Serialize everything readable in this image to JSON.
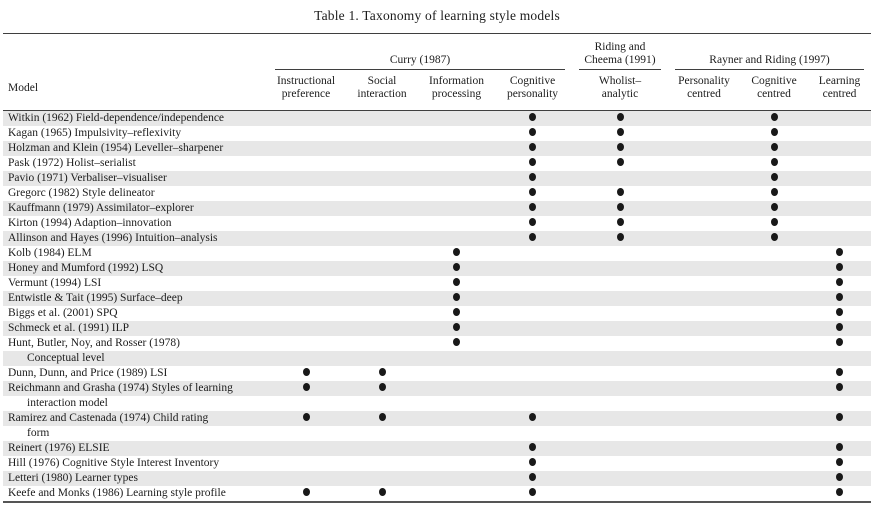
{
  "title": "Table 1. Taxonomy of learning style models",
  "colors": {
    "stripe": "#e7e7e7",
    "text": "#1c1c1c",
    "rule": "#3f3f3f",
    "rule_heavy": "#555555"
  },
  "table": {
    "model_header": "Model",
    "groups": [
      {
        "label": "Curry (1987)",
        "span": 4
      },
      {
        "label": "Riding and Cheema (1991)",
        "span": 1
      },
      {
        "label": "Rayner and Riding (1997)",
        "span": 3
      }
    ],
    "columns": [
      "Instructional preference",
      "Social interaction",
      "Information processing",
      "Cognitive personality",
      "Wholist–analytic",
      "Personality centred",
      "Cognitive centred",
      "Learning centred"
    ],
    "dot_legend": "filled dot = model classified under this family",
    "rows": [
      {
        "model": "Witkin (1962) Field-dependence/independence",
        "dots": [
          0,
          0,
          0,
          1,
          1,
          0,
          1,
          0
        ]
      },
      {
        "model": "Kagan (1965) Impulsivity–reflexivity",
        "dots": [
          0,
          0,
          0,
          1,
          1,
          0,
          1,
          0
        ]
      },
      {
        "model": "Holzman and Klein (1954) Leveller–sharpener",
        "dots": [
          0,
          0,
          0,
          1,
          1,
          0,
          1,
          0
        ]
      },
      {
        "model": "Pask (1972) Holist–serialist",
        "dots": [
          0,
          0,
          0,
          1,
          1,
          0,
          1,
          0
        ]
      },
      {
        "model": "Pavio (1971) Verbaliser–visualiser",
        "dots": [
          0,
          0,
          0,
          1,
          0,
          0,
          1,
          0
        ]
      },
      {
        "model": "Gregorc (1982) Style delineator",
        "dots": [
          0,
          0,
          0,
          1,
          1,
          0,
          1,
          0
        ]
      },
      {
        "model": "Kauffmann (1979) Assimilator–explorer",
        "dots": [
          0,
          0,
          0,
          1,
          1,
          0,
          1,
          0
        ]
      },
      {
        "model": "Kirton (1994) Adaption–innovation",
        "dots": [
          0,
          0,
          0,
          1,
          1,
          0,
          1,
          0
        ]
      },
      {
        "model": "Allinson and Hayes (1996) Intuition–analysis",
        "dots": [
          0,
          0,
          0,
          1,
          1,
          0,
          1,
          0
        ]
      },
      {
        "model": "Kolb (1984) ELM",
        "dots": [
          0,
          0,
          1,
          0,
          0,
          0,
          0,
          1
        ]
      },
      {
        "model": "Honey and Mumford (1992) LSQ",
        "dots": [
          0,
          0,
          1,
          0,
          0,
          0,
          0,
          1
        ]
      },
      {
        "model": "Vermunt (1994) LSI",
        "dots": [
          0,
          0,
          1,
          0,
          0,
          0,
          0,
          1
        ]
      },
      {
        "model": "Entwistle & Tait (1995) Surface–deep",
        "dots": [
          0,
          0,
          1,
          0,
          0,
          0,
          0,
          1
        ]
      },
      {
        "model": "Biggs et al. (2001) SPQ",
        "dots": [
          0,
          0,
          1,
          0,
          0,
          0,
          0,
          1
        ]
      },
      {
        "model": "Schmeck et al. (1991) ILP",
        "dots": [
          0,
          0,
          1,
          0,
          0,
          0,
          0,
          1
        ]
      },
      {
        "model": "Hunt, Butler, Noy, and Rosser (1978)",
        "continuation": "Conceptual level",
        "dots": [
          0,
          0,
          1,
          0,
          0,
          0,
          0,
          1
        ]
      },
      {
        "model": "Dunn, Dunn, and Price (1989) LSI",
        "dots": [
          1,
          1,
          0,
          0,
          0,
          0,
          0,
          1
        ]
      },
      {
        "model": "Reichmann and Grasha (1974) Styles of learning",
        "continuation": "interaction model",
        "dots": [
          1,
          1,
          0,
          0,
          0,
          0,
          0,
          1
        ]
      },
      {
        "model": "Ramirez and Castenada (1974) Child rating",
        "continuation": "form",
        "dots": [
          1,
          1,
          0,
          1,
          0,
          0,
          0,
          1
        ]
      },
      {
        "model": "Reinert (1976) ELSIE",
        "dots": [
          0,
          0,
          0,
          1,
          0,
          0,
          0,
          1
        ]
      },
      {
        "model": "Hill (1976) Cognitive Style Interest Inventory",
        "dots": [
          0,
          0,
          0,
          1,
          0,
          0,
          0,
          1
        ]
      },
      {
        "model": "Letteri (1980) Learner types",
        "dots": [
          0,
          0,
          0,
          1,
          0,
          0,
          0,
          1
        ]
      },
      {
        "model": "Keefe and Monks (1986) Learning style profile",
        "dots": [
          1,
          1,
          0,
          1,
          0,
          0,
          0,
          1
        ]
      }
    ]
  }
}
